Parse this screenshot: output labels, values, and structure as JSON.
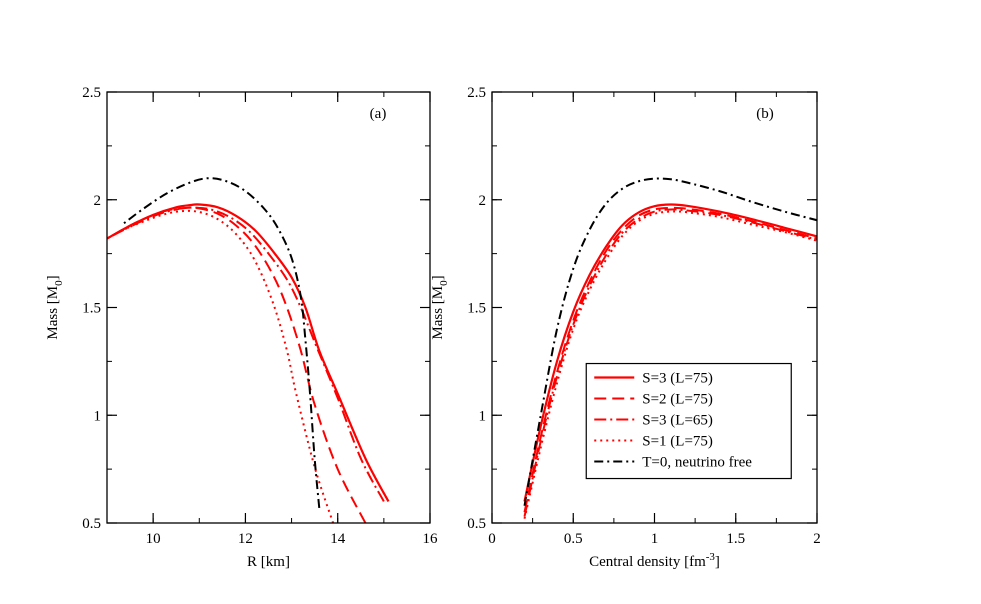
{
  "chart_data": [
    {
      "type": "line",
      "panel_label": "(a)",
      "xlabel": "R [km]",
      "ylabel": "Mass [M",
      "ylabel_sub": "0",
      "ylabel_end": "]",
      "xlim": [
        9,
        16
      ],
      "ylim": [
        0.5,
        2.5
      ],
      "xticks": [
        10,
        12,
        14,
        16
      ],
      "yticks": [
        0.5,
        1,
        1.5,
        2,
        2.5
      ],
      "xtick_labels": [
        "10",
        "12",
        "14",
        "16"
      ],
      "ytick_labels": [
        "0.5",
        "1",
        "1.5",
        "2",
        "2.5"
      ],
      "series": [
        {
          "name": "S=3 (L=75)",
          "color": "#ff0000",
          "dash": "solid",
          "x": [
            15.1,
            14.6,
            14.0,
            13.6,
            13.3,
            13.0,
            12.6,
            12.2,
            11.8,
            11.4,
            11.0,
            10.8,
            10.5,
            10.0,
            9.5,
            9.0
          ],
          "y": [
            0.6,
            0.8,
            1.1,
            1.3,
            1.5,
            1.64,
            1.76,
            1.86,
            1.925,
            1.965,
            1.978,
            1.975,
            1.965,
            1.93,
            1.88,
            1.82
          ]
        },
        {
          "name": "S=2 (L=75)",
          "color": "#ff0000",
          "dash": "dash",
          "x": [
            14.6,
            14.0,
            13.5,
            13.2,
            12.9,
            12.6,
            12.2,
            11.8,
            11.4,
            11.0,
            10.7,
            10.3,
            9.9,
            9.5,
            9.0
          ],
          "y": [
            0.5,
            0.75,
            1.05,
            1.3,
            1.5,
            1.65,
            1.79,
            1.88,
            1.935,
            1.96,
            1.962,
            1.95,
            1.92,
            1.88,
            1.82
          ]
        },
        {
          "name": "S=3 (L=65)",
          "color": "#ff0000",
          "dash": "dashdot",
          "x": [
            15.0,
            14.5,
            14.0,
            13.5,
            13.2,
            12.9,
            12.5,
            12.1,
            11.7,
            11.3,
            11.0,
            10.7,
            10.3,
            9.9,
            9.5,
            9.0
          ],
          "y": [
            0.6,
            0.8,
            1.08,
            1.34,
            1.5,
            1.63,
            1.75,
            1.85,
            1.915,
            1.952,
            1.962,
            1.962,
            1.945,
            1.915,
            1.875,
            1.82
          ]
        },
        {
          "name": "S=1 (L=75)",
          "color": "#ff0000",
          "dash": "dot",
          "x": [
            13.9,
            13.5,
            13.1,
            12.9,
            12.6,
            12.2,
            11.8,
            11.4,
            11.0,
            10.6,
            10.2,
            9.8,
            9.4,
            9.0
          ],
          "y": [
            0.5,
            0.76,
            1.1,
            1.3,
            1.52,
            1.72,
            1.84,
            1.91,
            1.943,
            1.947,
            1.93,
            1.9,
            1.865,
            1.82
          ]
        },
        {
          "name": "T=0, neutrino free",
          "color": "#000000",
          "dash": "dashdotblack",
          "x": [
            13.6,
            13.5,
            13.4,
            13.3,
            13.2,
            13.0,
            12.7,
            12.4,
            12.0,
            11.6,
            11.2,
            10.8,
            10.3,
            9.8,
            9.3
          ],
          "y": [
            0.57,
            0.8,
            1.1,
            1.35,
            1.55,
            1.73,
            1.87,
            1.96,
            2.04,
            2.085,
            2.1,
            2.08,
            2.03,
            1.96,
            1.88
          ]
        }
      ]
    },
    {
      "type": "line",
      "panel_label": "(b)",
      "xlabel": "Central density [fm",
      "xlabel_sup": "-3",
      "xlabel_end": "]",
      "ylabel": "Mass [M",
      "ylabel_sub": "0",
      "ylabel_end": "]",
      "xlim": [
        0,
        2
      ],
      "ylim": [
        0.5,
        2.5
      ],
      "xticks": [
        0,
        0.5,
        1,
        1.5,
        2
      ],
      "yticks": [
        0.5,
        1,
        1.5,
        2,
        2.5
      ],
      "xtick_labels": [
        "0",
        "0.5",
        "1",
        "1.5",
        "2"
      ],
      "ytick_labels": [
        "0.5",
        "1",
        "1.5",
        "2",
        "2.5"
      ],
      "legend_position": "lower-center",
      "series": [
        {
          "name": "S=3 (L=75)",
          "color": "#ff0000",
          "dash": "solid",
          "x": [
            0.2,
            0.3,
            0.4,
            0.5,
            0.6,
            0.7,
            0.8,
            0.9,
            1.0,
            1.1,
            1.2,
            1.4,
            1.6,
            1.8,
            2.0
          ],
          "y": [
            0.6,
            0.95,
            1.25,
            1.48,
            1.65,
            1.78,
            1.88,
            1.94,
            1.97,
            1.978,
            1.972,
            1.945,
            1.91,
            1.87,
            1.83
          ]
        },
        {
          "name": "S=2 (L=75)",
          "color": "#ff0000",
          "dash": "dash",
          "x": [
            0.2,
            0.3,
            0.4,
            0.5,
            0.6,
            0.7,
            0.8,
            0.9,
            1.0,
            1.1,
            1.2,
            1.4,
            1.6,
            1.8,
            2.0
          ],
          "y": [
            0.55,
            0.9,
            1.2,
            1.44,
            1.62,
            1.76,
            1.86,
            1.925,
            1.955,
            1.962,
            1.958,
            1.935,
            1.9,
            1.86,
            1.82
          ]
        },
        {
          "name": "S=3 (L=65)",
          "color": "#ff0000",
          "dash": "dashdot",
          "x": [
            0.2,
            0.3,
            0.4,
            0.5,
            0.6,
            0.7,
            0.8,
            0.9,
            1.0,
            1.1,
            1.2,
            1.4,
            1.6,
            1.8,
            2.0
          ],
          "y": [
            0.53,
            0.88,
            1.18,
            1.42,
            1.6,
            1.74,
            1.845,
            1.91,
            1.945,
            1.955,
            1.95,
            1.93,
            1.895,
            1.855,
            1.815
          ]
        },
        {
          "name": "S=1 (L=75)",
          "color": "#ff0000",
          "dash": "dot",
          "x": [
            0.2,
            0.3,
            0.4,
            0.5,
            0.6,
            0.7,
            0.8,
            0.9,
            1.0,
            1.1,
            1.2,
            1.4,
            1.6,
            1.8,
            2.0
          ],
          "y": [
            0.52,
            0.85,
            1.15,
            1.4,
            1.58,
            1.72,
            1.83,
            1.9,
            1.935,
            1.945,
            1.942,
            1.92,
            1.885,
            1.85,
            1.81
          ]
        },
        {
          "name": "T=0, neutrino free",
          "color": "#000000",
          "dash": "dashdotblack",
          "x": [
            0.2,
            0.3,
            0.4,
            0.5,
            0.6,
            0.7,
            0.8,
            0.9,
            1.0,
            1.1,
            1.2,
            1.4,
            1.6,
            1.8,
            2.0
          ],
          "y": [
            0.58,
            1.0,
            1.4,
            1.68,
            1.86,
            1.98,
            2.05,
            2.085,
            2.098,
            2.095,
            2.08,
            2.04,
            1.99,
            1.945,
            1.905
          ]
        }
      ]
    }
  ]
}
